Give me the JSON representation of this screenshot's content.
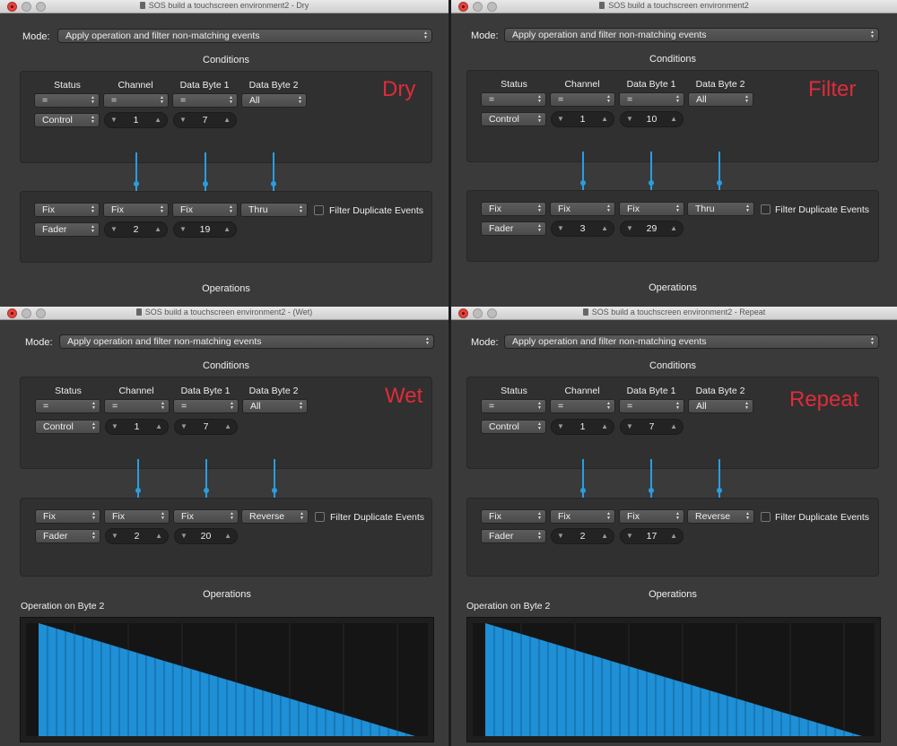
{
  "windows": [
    {
      "title": "SOS build a touchscreen environment2 - Dry",
      "mode_label": "Mode:",
      "mode_value": "Apply operation and filter non-matching events",
      "conditions_title": "Conditions",
      "operations_title": "Operations",
      "annotation": "Dry",
      "headers": [
        "Status",
        "Channel",
        "Data Byte 1",
        "Data Byte 2"
      ],
      "cond_selects": [
        "=",
        "=",
        "=",
        "All"
      ],
      "cond_row2": {
        "status": "Control",
        "channel": "1",
        "byte1": "7"
      },
      "op_selects": [
        "Fix",
        "Fix",
        "Fix",
        "Thru"
      ],
      "op_row2": {
        "status": "Fader",
        "channel": "2",
        "byte1": "19"
      },
      "filter_duplicates_label": "Filter Duplicate Events"
    },
    {
      "title": "SOS build a touchscreen environment2",
      "mode_label": "Mode:",
      "mode_value": "Apply operation and filter non-matching events",
      "conditions_title": "Conditions",
      "operations_title": "Operations",
      "annotation": "Filter",
      "headers": [
        "Status",
        "Channel",
        "Data Byte 1",
        "Data Byte 2"
      ],
      "cond_selects": [
        "=",
        "=",
        "=",
        "All"
      ],
      "cond_row2": {
        "status": "Control",
        "channel": "1",
        "byte1": "10"
      },
      "op_selects": [
        "Fix",
        "Fix",
        "Fix",
        "Thru"
      ],
      "op_row2": {
        "status": "Fader",
        "channel": "3",
        "byte1": "29"
      },
      "filter_duplicates_label": "Filter Duplicate Events"
    },
    {
      "title": "SOS build a touchscreen environment2 - (Wet)",
      "mode_label": "Mode:",
      "mode_value": "Apply operation and filter non-matching events",
      "conditions_title": "Conditions",
      "operations_title": "Operations",
      "annotation": "Wet",
      "headers": [
        "Status",
        "Channel",
        "Data Byte 1",
        "Data Byte 2"
      ],
      "cond_selects": [
        "=",
        "=",
        "=",
        "All"
      ],
      "cond_row2": {
        "status": "Control",
        "channel": "1",
        "byte1": "7"
      },
      "op_selects": [
        "Fix",
        "Fix",
        "Fix",
        "Reverse"
      ],
      "op_row2": {
        "status": "Fader",
        "channel": "2",
        "byte1": "20"
      },
      "filter_duplicates_label": "Filter Duplicate Events",
      "graph_title": "Operation on Byte 2"
    },
    {
      "title": "SOS build a touchscreen environment2 - Repeat",
      "mode_label": "Mode:",
      "mode_value": "Apply operation and filter non-matching events",
      "conditions_title": "Conditions",
      "operations_title": "Operations",
      "annotation": "Repeat",
      "headers": [
        "Status",
        "Channel",
        "Data Byte 1",
        "Data Byte 2"
      ],
      "cond_selects": [
        "=",
        "=",
        "=",
        "All"
      ],
      "cond_row2": {
        "status": "Control",
        "channel": "1",
        "byte1": "7"
      },
      "op_selects": [
        "Fix",
        "Fix",
        "Fix",
        "Reverse"
      ],
      "op_row2": {
        "status": "Fader",
        "channel": "2",
        "byte1": "17"
      },
      "filter_duplicates_label": "Filter Duplicate Events",
      "graph_title": "Operation on Byte 2"
    }
  ],
  "colors": {
    "accent": "#2a9de0",
    "annotation": "#e02b3a",
    "window_bg": "#3a3a3a"
  },
  "icons": [
    "close-icon",
    "minimize-icon",
    "zoom-icon",
    "document-icon",
    "popup-arrows-icon",
    "stepper-down-icon",
    "stepper-up-icon"
  ]
}
